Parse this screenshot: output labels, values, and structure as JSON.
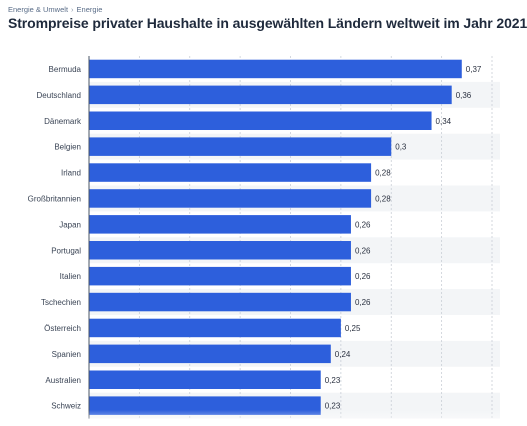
{
  "breadcrumb": {
    "items": [
      "Energie & Umwelt",
      "Energie"
    ],
    "separator": "›"
  },
  "title": "Strompreise privater Haushalte in ausgewählten Ländern weltweit im Jahr 2021",
  "colors": {
    "bar": "#2d5fdc",
    "band": "#f3f5f7",
    "grid": "#c9ced6",
    "axis": "#4a5566"
  },
  "chart_data": {
    "type": "bar",
    "orientation": "horizontal",
    "categories": [
      "Bermuda",
      "Deutschland",
      "Dänemark",
      "Belgien",
      "Irland",
      "Großbritannien",
      "Japan",
      "Portugal",
      "Italien",
      "Tschechien",
      "Österreich",
      "Spanien",
      "Australien",
      "Schweiz"
    ],
    "values": [
      0.37,
      0.36,
      0.34,
      0.3,
      0.28,
      0.28,
      0.26,
      0.26,
      0.26,
      0.26,
      0.25,
      0.24,
      0.23,
      0.23
    ],
    "value_labels": [
      "0,37",
      "0,36",
      "0,34",
      "0,3",
      "0,28",
      "0,28",
      "0,26",
      "0,26",
      "0,26",
      "0,26",
      "0,25",
      "0,24",
      "0,23",
      "0,23"
    ],
    "xlim": [
      0,
      0.4
    ],
    "grid": true,
    "title": "Strompreise privater Haushalte in ausgewählten Ländern weltweit im Jahr 2021"
  }
}
